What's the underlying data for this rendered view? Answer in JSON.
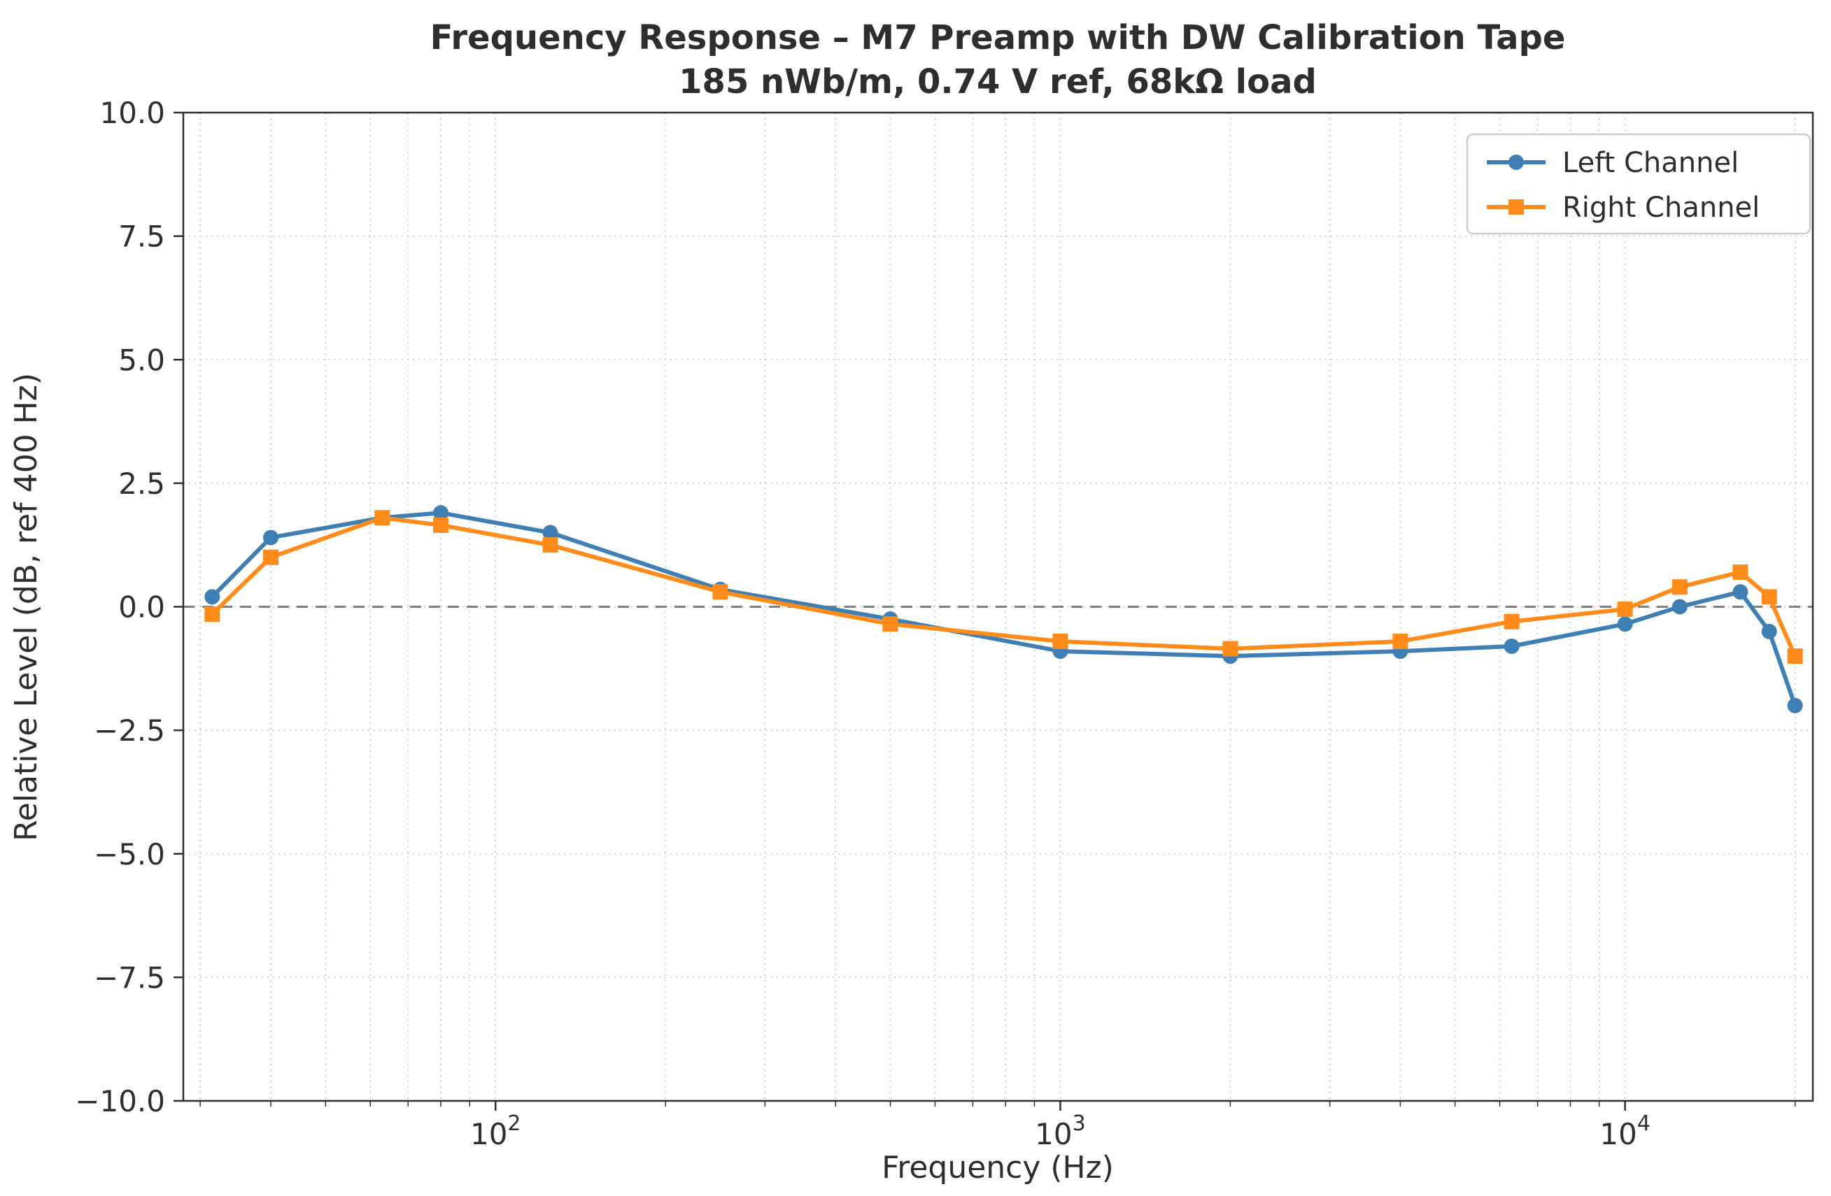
{
  "chart_data": {
    "type": "line",
    "title": "Frequency Response – M7 Preamp with DW Calibration Tape",
    "subtitle": "185 nWb/m, 0.74 V ref, 68kΩ load",
    "xlabel": "Frequency (Hz)",
    "ylabel": "Relative Level (dB, ref 400 Hz)",
    "x_scale": "log",
    "xlim": [
      28,
      21500
    ],
    "ylim": [
      -10,
      10
    ],
    "y_ticks": [
      -10,
      -7.5,
      -5,
      -2.5,
      0,
      2.5,
      5,
      7.5,
      10
    ],
    "x_major_ticks": [
      100,
      1000,
      10000
    ],
    "x_major_tick_labels": [
      "10²",
      "10³",
      "10⁴"
    ],
    "zero_reference_line": 0,
    "grid": true,
    "legend_position": "upper right",
    "frame_color": "#2e2e2e",
    "grid_color": "#cfcfcf",
    "zero_line_color": "#808080",
    "x": [
      31.5,
      40,
      63,
      80,
      125,
      250,
      500,
      1000,
      2000,
      4000,
      6300,
      10000,
      12500,
      16000,
      18000,
      20000
    ],
    "series": [
      {
        "name": "Left Channel",
        "color": "#3f7fb4",
        "marker": "circle",
        "values": [
          0.2,
          1.4,
          1.8,
          1.9,
          1.5,
          0.35,
          -0.25,
          -0.9,
          -1.0,
          -0.9,
          -0.8,
          -0.35,
          0.0,
          0.3,
          -0.5,
          -2.0
        ]
      },
      {
        "name": "Right Channel",
        "color": "#ff8c1a",
        "marker": "square",
        "values": [
          -0.15,
          1.0,
          1.8,
          1.65,
          1.25,
          0.3,
          -0.35,
          -0.7,
          -0.85,
          -0.7,
          -0.3,
          -0.05,
          0.4,
          0.7,
          0.2,
          -1.0
        ]
      }
    ]
  }
}
